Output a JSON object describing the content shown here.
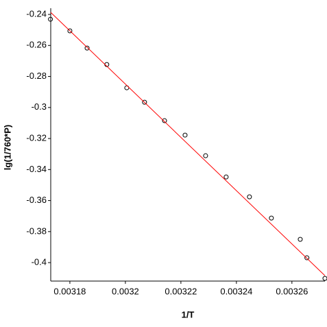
{
  "chart_data": {
    "type": "scatter",
    "x_label": "1/T",
    "y_label": "lg(1/760*P)",
    "xlim": [
      0.0031731,
      0.0032719
    ],
    "ylim": [
      -0.4119,
      -0.236
    ],
    "xticks": [
      0.00318,
      0.0032,
      0.00322,
      0.00324,
      0.00326
    ],
    "yticks": [
      -0.24,
      -0.26,
      -0.28,
      -0.3,
      -0.32,
      -0.34,
      -0.36,
      -0.38,
      -0.4
    ],
    "series": [
      {
        "color": "#000000",
        "x": [
          0.003173,
          0.00318,
          0.0031862,
          0.0031933,
          0.0032005,
          0.0032069,
          0.0032141,
          0.0032215,
          0.0032289,
          0.0032363,
          0.0032447,
          0.0032526,
          0.003263,
          0.0032654,
          0.0032719
        ],
        "values": [
          -0.2431,
          -0.2506,
          -0.2617,
          -0.2723,
          -0.2873,
          -0.2966,
          -0.3085,
          -0.3178,
          -0.3311,
          -0.3448,
          -0.3576,
          -0.3713,
          -0.385,
          -0.3969,
          -0.4102
        ]
      },
      {
        "color": "#ff0000",
        "style": "line",
        "x": [
          0.0031731,
          0.0032719
        ],
        "values": [
          -0.2387,
          -0.4084
        ]
      }
    ]
  }
}
